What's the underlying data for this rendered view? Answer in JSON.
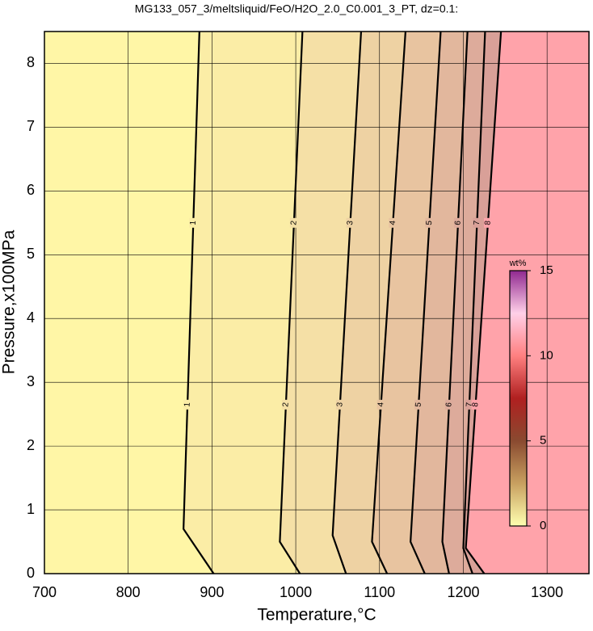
{
  "chart_data": {
    "type": "contour",
    "title": "MG133_057_3/meltsliquid/FeO/H2O_2.0_C0.001_3_PT, dz=0.1:",
    "xlabel": "Temperature,°C",
    "ylabel": "Pressure,x100MPa",
    "xlim": [
      700,
      1350
    ],
    "ylim": [
      0,
      8.5
    ],
    "xticks": [
      700,
      800,
      900,
      1000,
      1100,
      1200,
      1300
    ],
    "yticks": [
      0,
      1,
      2,
      3,
      4,
      5,
      6,
      7,
      8
    ],
    "grid": true,
    "base_color": "#fff6a6",
    "contours": [
      {
        "level": 1,
        "x": [
          902,
          866,
          885
        ],
        "y": [
          0,
          0.7,
          8.5
        ],
        "fill": "#fbeda6"
      },
      {
        "level": 2,
        "x": [
          1005,
          981,
          1008
        ],
        "y": [
          0,
          0.5,
          8.5
        ],
        "fill": "#f5e0a6"
      },
      {
        "level": 3,
        "x": [
          1060,
          1044,
          1078
        ],
        "y": [
          0,
          0.6,
          8.5
        ],
        "fill": "#eed2a3"
      },
      {
        "level": 4,
        "x": [
          1109,
          1091,
          1131
        ],
        "y": [
          0,
          0.5,
          8.5
        ],
        "fill": "#e8c4a0"
      },
      {
        "level": 5,
        "x": [
          1154,
          1137,
          1173
        ],
        "y": [
          0,
          0.5,
          8.5
        ],
        "fill": "#e2b79d"
      },
      {
        "level": 6,
        "x": [
          1183,
          1175,
          1205
        ],
        "y": [
          0,
          0.5,
          8.5
        ],
        "fill": "#ddab9b"
      },
      {
        "level": 7,
        "x": [
          1211,
          1200,
          1226
        ],
        "y": [
          0,
          0.4,
          8.5
        ],
        "fill": "#d9a098"
      },
      {
        "level": 8,
        "x": [
          1225,
          1203,
          1245
        ],
        "y": [
          0,
          0.4,
          8.5
        ],
        "fill": "#ffa3aa"
      }
    ],
    "colorbar": {
      "label": "wt%",
      "lim": [
        0,
        15
      ],
      "ticks": [
        0,
        5,
        10,
        15
      ],
      "colors": [
        "#ffffb0",
        "#c8a060",
        "#8a4a30",
        "#b02020",
        "#ff8080",
        "#ffd0e8",
        "#902890"
      ]
    }
  }
}
